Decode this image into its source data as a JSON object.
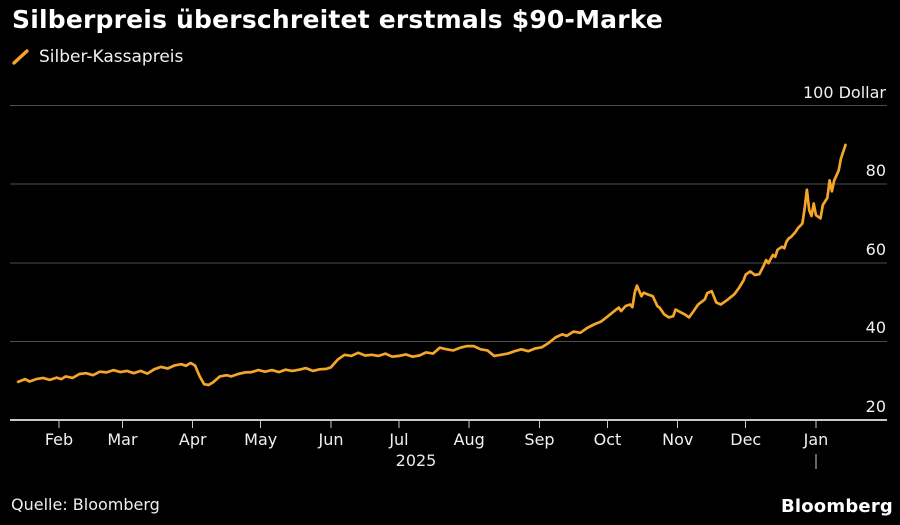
{
  "title": "Silberpreis überschreitet erstmals $90-Marke",
  "legend": {
    "label": "Silber-Kassapreis"
  },
  "footer": {
    "source": "Quelle: Bloomberg",
    "brand": "Bloomberg"
  },
  "colors": {
    "background": "#000000",
    "line": "#F5A529",
    "grid": "#4E4E4E",
    "axis": "#C8C8C8",
    "title_text": "#FFFFFF",
    "label_text": "#F1F1F1"
  },
  "chart_data": {
    "type": "line",
    "title": "Silberpreis überschreitet erstmals $90-Marke",
    "x_ticks": [
      "Feb",
      "Mar",
      "Apr",
      "May",
      "Jun",
      "Jul",
      "Aug",
      "Sep",
      "Oct",
      "Nov",
      "Dec",
      "Jan"
    ],
    "x_tick_dates": [
      "2025-02-01",
      "2025-03-01",
      "2025-04-01",
      "2025-05-01",
      "2025-06-01",
      "2025-07-01",
      "2025-08-01",
      "2025-09-01",
      "2025-10-01",
      "2025-11-01",
      "2025-12-01",
      "2026-01-01"
    ],
    "x_year_label": "2025",
    "x_range": [
      "2025-01-14",
      "2026-01-14"
    ],
    "y_ticks": [
      {
        "value": 20,
        "label": "20"
      },
      {
        "value": 40,
        "label": "40"
      },
      {
        "value": 60,
        "label": "60"
      },
      {
        "value": 80,
        "label": "80"
      },
      {
        "value": 100,
        "label": "100 Dollar"
      }
    ],
    "ylim": [
      20,
      104
    ],
    "grid": "horizontal",
    "legend_position": "top-left",
    "series": [
      {
        "name": "Silber-Kassapreis",
        "color": "#F5A529",
        "points": [
          [
            "2025-01-14",
            29.7
          ],
          [
            "2025-01-17",
            30.4
          ],
          [
            "2025-01-19",
            29.8
          ],
          [
            "2025-01-22",
            30.4
          ],
          [
            "2025-01-25",
            30.7
          ],
          [
            "2025-01-28",
            30.2
          ],
          [
            "2025-01-31",
            30.8
          ],
          [
            "2025-02-02",
            30.4
          ],
          [
            "2025-02-04",
            31.1
          ],
          [
            "2025-02-07",
            30.7
          ],
          [
            "2025-02-10",
            31.7
          ],
          [
            "2025-02-13",
            31.9
          ],
          [
            "2025-02-16",
            31.4
          ],
          [
            "2025-02-19",
            32.3
          ],
          [
            "2025-02-22",
            32.1
          ],
          [
            "2025-02-25",
            32.7
          ],
          [
            "2025-02-28",
            32.2
          ],
          [
            "2025-03-03",
            32.5
          ],
          [
            "2025-03-06",
            31.9
          ],
          [
            "2025-03-09",
            32.5
          ],
          [
            "2025-03-12",
            31.8
          ],
          [
            "2025-03-15",
            32.9
          ],
          [
            "2025-03-18",
            33.5
          ],
          [
            "2025-03-21",
            33.1
          ],
          [
            "2025-03-24",
            33.9
          ],
          [
            "2025-03-27",
            34.2
          ],
          [
            "2025-03-29",
            33.8
          ],
          [
            "2025-03-31",
            34.5
          ],
          [
            "2025-04-02",
            33.9
          ],
          [
            "2025-04-04",
            31.2
          ],
          [
            "2025-04-06",
            29.1
          ],
          [
            "2025-04-08",
            28.9
          ],
          [
            "2025-04-10",
            29.6
          ],
          [
            "2025-04-13",
            31.1
          ],
          [
            "2025-04-16",
            31.4
          ],
          [
            "2025-04-18",
            31.1
          ],
          [
            "2025-04-21",
            31.7
          ],
          [
            "2025-04-24",
            32.1
          ],
          [
            "2025-04-27",
            32.2
          ],
          [
            "2025-04-30",
            32.7
          ],
          [
            "2025-05-03",
            32.3
          ],
          [
            "2025-05-06",
            32.7
          ],
          [
            "2025-05-09",
            32.2
          ],
          [
            "2025-05-12",
            32.8
          ],
          [
            "2025-05-15",
            32.5
          ],
          [
            "2025-05-18",
            32.8
          ],
          [
            "2025-05-21",
            33.2
          ],
          [
            "2025-05-24",
            32.5
          ],
          [
            "2025-05-27",
            32.9
          ],
          [
            "2025-05-30",
            33.0
          ],
          [
            "2025-06-01",
            33.4
          ],
          [
            "2025-06-04",
            35.4
          ],
          [
            "2025-06-07",
            36.6
          ],
          [
            "2025-06-10",
            36.3
          ],
          [
            "2025-06-13",
            37.1
          ],
          [
            "2025-06-16",
            36.4
          ],
          [
            "2025-06-19",
            36.6
          ],
          [
            "2025-06-22",
            36.3
          ],
          [
            "2025-06-25",
            36.9
          ],
          [
            "2025-06-28",
            36.1
          ],
          [
            "2025-07-01",
            36.3
          ],
          [
            "2025-07-04",
            36.7
          ],
          [
            "2025-07-07",
            36.1
          ],
          [
            "2025-07-10",
            36.4
          ],
          [
            "2025-07-13",
            37.2
          ],
          [
            "2025-07-16",
            36.9
          ],
          [
            "2025-07-19",
            38.4
          ],
          [
            "2025-07-22",
            38.0
          ],
          [
            "2025-07-25",
            37.7
          ],
          [
            "2025-07-28",
            38.4
          ],
          [
            "2025-07-31",
            38.8
          ],
          [
            "2025-08-03",
            38.8
          ],
          [
            "2025-08-06",
            38.0
          ],
          [
            "2025-08-09",
            37.7
          ],
          [
            "2025-08-12",
            36.3
          ],
          [
            "2025-08-15",
            36.6
          ],
          [
            "2025-08-18",
            36.9
          ],
          [
            "2025-08-21",
            37.5
          ],
          [
            "2025-08-24",
            38.0
          ],
          [
            "2025-08-27",
            37.5
          ],
          [
            "2025-08-30",
            38.2
          ],
          [
            "2025-09-02",
            38.5
          ],
          [
            "2025-09-05",
            39.6
          ],
          [
            "2025-09-08",
            41.0
          ],
          [
            "2025-09-11",
            41.8
          ],
          [
            "2025-09-13",
            41.4
          ],
          [
            "2025-09-16",
            42.5
          ],
          [
            "2025-09-19",
            42.2
          ],
          [
            "2025-09-22",
            43.4
          ],
          [
            "2025-09-25",
            44.3
          ],
          [
            "2025-09-28",
            45.0
          ],
          [
            "2025-10-01",
            46.3
          ],
          [
            "2025-10-04",
            47.7
          ],
          [
            "2025-10-06",
            48.6
          ],
          [
            "2025-10-07",
            47.7
          ],
          [
            "2025-10-09",
            49.0
          ],
          [
            "2025-10-11",
            49.4
          ],
          [
            "2025-10-12",
            48.7
          ],
          [
            "2025-10-13",
            52.4
          ],
          [
            "2025-10-14",
            54.2
          ],
          [
            "2025-10-16",
            51.5
          ],
          [
            "2025-10-17",
            52.4
          ],
          [
            "2025-10-19",
            51.9
          ],
          [
            "2025-10-21",
            51.5
          ],
          [
            "2025-10-23",
            49.0
          ],
          [
            "2025-10-24",
            48.6
          ],
          [
            "2025-10-26",
            46.9
          ],
          [
            "2025-10-28",
            46.1
          ],
          [
            "2025-10-30",
            46.4
          ],
          [
            "2025-10-31",
            48.1
          ],
          [
            "2025-11-02",
            47.5
          ],
          [
            "2025-11-04",
            46.9
          ],
          [
            "2025-11-06",
            46.1
          ],
          [
            "2025-11-08",
            47.7
          ],
          [
            "2025-11-10",
            49.4
          ],
          [
            "2025-11-13",
            50.7
          ],
          [
            "2025-11-14",
            52.3
          ],
          [
            "2025-11-16",
            52.8
          ],
          [
            "2025-11-18",
            49.9
          ],
          [
            "2025-11-20",
            49.4
          ],
          [
            "2025-11-23",
            50.6
          ],
          [
            "2025-11-26",
            52.0
          ],
          [
            "2025-11-28",
            53.6
          ],
          [
            "2025-11-30",
            55.5
          ],
          [
            "2025-12-01",
            57.0
          ],
          [
            "2025-12-03",
            57.8
          ],
          [
            "2025-12-05",
            56.9
          ],
          [
            "2025-12-07",
            57.1
          ],
          [
            "2025-12-09",
            59.4
          ],
          [
            "2025-12-10",
            60.7
          ],
          [
            "2025-12-11",
            59.9
          ],
          [
            "2025-12-13",
            62.0
          ],
          [
            "2025-12-14",
            61.5
          ],
          [
            "2025-12-15",
            63.3
          ],
          [
            "2025-12-17",
            64.1
          ],
          [
            "2025-12-18",
            63.7
          ],
          [
            "2025-12-19",
            65.4
          ],
          [
            "2025-12-20",
            66.2
          ],
          [
            "2025-12-21",
            66.6
          ],
          [
            "2025-12-23",
            67.9
          ],
          [
            "2025-12-24",
            68.8
          ],
          [
            "2025-12-26",
            70.0
          ],
          [
            "2025-12-27",
            74.0
          ],
          [
            "2025-12-28",
            78.6
          ],
          [
            "2025-12-29",
            73.4
          ],
          [
            "2025-12-30",
            71.9
          ],
          [
            "2025-12-31",
            75.1
          ],
          [
            "2026-01-01",
            72.1
          ],
          [
            "2026-01-03",
            71.3
          ],
          [
            "2026-01-04",
            74.7
          ],
          [
            "2026-01-06",
            76.5
          ],
          [
            "2026-01-07",
            81.0
          ],
          [
            "2026-01-08",
            78.2
          ],
          [
            "2026-01-09",
            80.9
          ],
          [
            "2026-01-11",
            83.5
          ],
          [
            "2026-01-12",
            86.5
          ],
          [
            "2026-01-14",
            90.0
          ]
        ]
      }
    ]
  }
}
